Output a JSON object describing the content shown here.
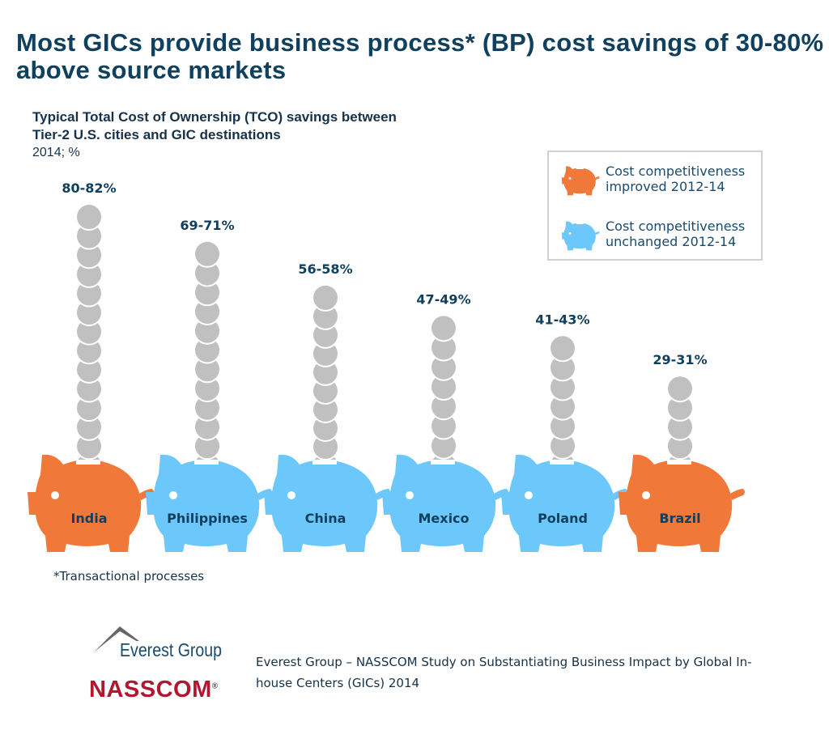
{
  "title": "Most GICs provide business process* (BP) cost savings of 30-80% above source markets",
  "chart_data": {
    "type": "bar",
    "title": "Typical Total Cost of Ownership (TCO) savings between Tier-2 U.S. cities and GIC destinations",
    "unit": "2014; %",
    "categories": [
      "India",
      "Philippines",
      "China",
      "Mexico",
      "Poland",
      "Brazil"
    ],
    "labels": [
      "80-82%",
      "69-71%",
      "56-58%",
      "47-49%",
      "41-43%",
      "29-31%"
    ],
    "values": [
      81,
      70,
      57,
      48,
      42,
      30
    ],
    "status": [
      "improved",
      "unchanged",
      "unchanged",
      "unchanged",
      "unchanged",
      "improved"
    ],
    "legend": [
      {
        "key": "improved",
        "label_line1": "Cost competitiveness",
        "label_line2": "improved 2012-14",
        "color": "#f07838"
      },
      {
        "key": "unchanged",
        "label_line1": "Cost competitiveness",
        "label_line2": "unchanged 2012-14",
        "color": "#6cc8fa"
      }
    ],
    "legend_position": "top-right",
    "coin_color": "#c0c0c0"
  },
  "footnote": "*Transactional processes",
  "source": "Everest Group – NASSCOM Study on Substantiating Business Impact by Global In-house Centers (GICs) 2014",
  "logos": {
    "everest": "Everest Group",
    "nasscom": "NASSCOM",
    "reg": "®"
  }
}
